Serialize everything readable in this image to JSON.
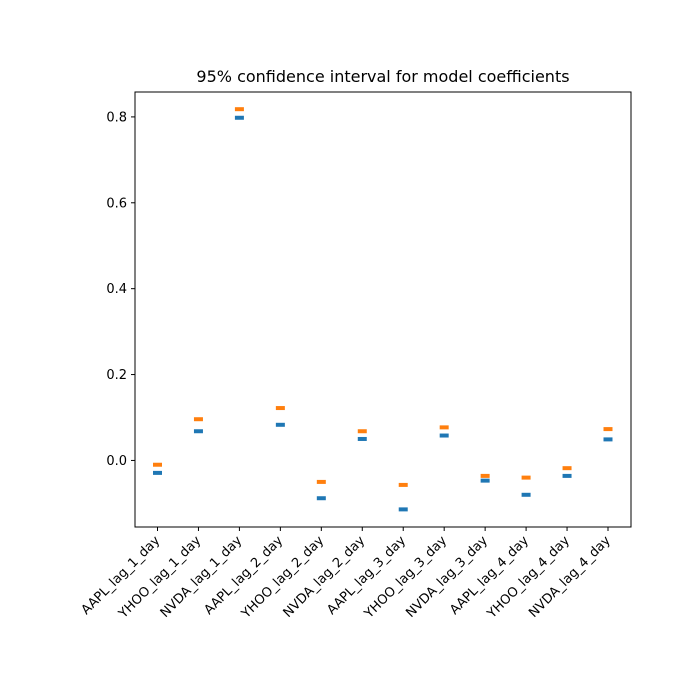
{
  "chart_data": {
    "type": "scatter",
    "title": "95% confidence interval for model coefficients",
    "xlabel": "",
    "ylabel": "",
    "categories": [
      "AAPL_lag_1_day",
      "YHOO_lag_1_day",
      "NVDA_lag_1_day",
      "AAPL_lag_2_day",
      "YHOO_lag_2_day",
      "NVDA_lag_2_day",
      "AAPL_lag_3_day",
      "YHOO_lag_3_day",
      "NVDA_lag_3_day",
      "AAPL_lag_4_day",
      "YHOO_lag_4_day",
      "NVDA_lag_4_day"
    ],
    "series": [
      {
        "values": [
          -0.029,
          0.068,
          0.798,
          0.083,
          -0.088,
          0.05,
          -0.114,
          0.058,
          -0.047,
          -0.08,
          -0.036,
          0.049
        ]
      },
      {
        "values": [
          -0.01,
          0.096,
          0.818,
          0.122,
          -0.05,
          0.068,
          -0.057,
          0.077,
          -0.036,
          -0.04,
          -0.018,
          0.073
        ]
      }
    ],
    "colors": [
      "#1f77b4",
      "#ff7f0e"
    ],
    "marker": "horizontal-line",
    "yticks": [
      "0.0",
      "0.2",
      "0.4",
      "0.6",
      "0.8"
    ],
    "ylim": [
      -0.155,
      0.858
    ],
    "grid": false
  }
}
